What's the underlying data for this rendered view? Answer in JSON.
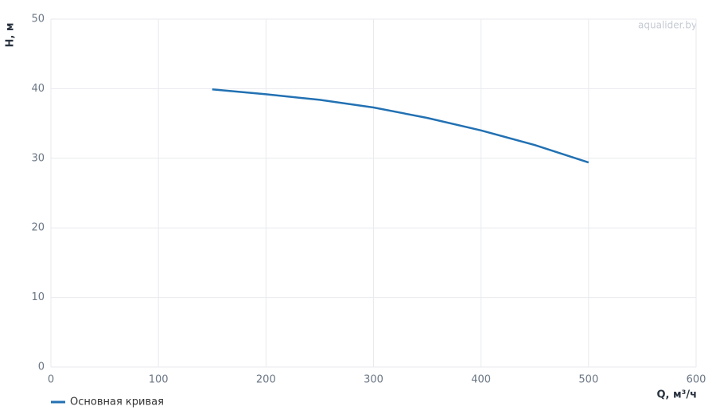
{
  "chart_data": {
    "type": "line",
    "x_label": "Q, м³/ч",
    "y_label": "H, м",
    "watermark": "aqualider.by",
    "xlim": [
      0,
      600
    ],
    "xticks": [
      0,
      100,
      200,
      300,
      400,
      500,
      600
    ],
    "ylim": [
      0,
      50
    ],
    "yticks": [
      0,
      10,
      20,
      30,
      40,
      50
    ],
    "grid": true,
    "legend": "bottom-left",
    "series": [
      {
        "name": "Основная кривая",
        "color": "#2271b3",
        "x": [
          150,
          200,
          250,
          300,
          350,
          400,
          450,
          500
        ],
        "values": [
          39.9,
          39.2,
          38.4,
          37.3,
          35.8,
          34.0,
          31.9,
          29.4
        ]
      }
    ]
  }
}
